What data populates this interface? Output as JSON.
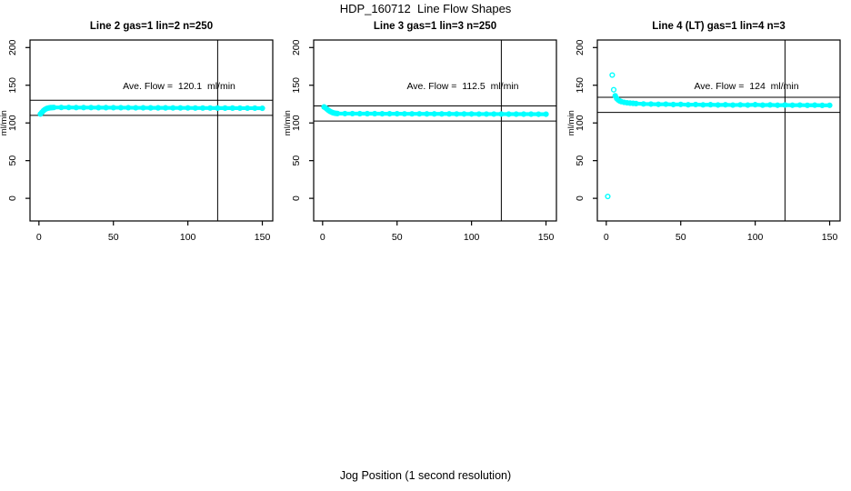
{
  "window": {
    "title": "HDP_160712  Line Flow Shapes",
    "xlabel": "Jog Position (1 second resolution)"
  },
  "colors": {
    "points": "#00FFFF",
    "axis": "#000000",
    "background": "#FFFFFF"
  },
  "chart_data": [
    {
      "type": "scatter",
      "title": "Line 2 gas=1 lin=2 n=250",
      "ylabel": "ml/min",
      "annotation": "Ave. Flow =  120.1  ml/min",
      "ave_flow": 120.1,
      "n": 250,
      "x_ticks": [
        0,
        50,
        100,
        150
      ],
      "y_ticks": [
        0,
        50,
        100,
        150,
        200
      ],
      "xlim": [
        -6,
        157
      ],
      "ylim": [
        -30,
        210
      ],
      "h_lines": [
        130.1,
        110.1
      ],
      "v_line": 120,
      "points": [
        [
          1,
          111.8
        ],
        [
          2,
          114.0
        ],
        [
          3,
          116.2
        ],
        [
          4,
          117.8
        ],
        [
          5,
          118.9
        ],
        [
          6,
          119.6
        ],
        [
          7,
          120.0
        ],
        [
          8,
          120.3
        ],
        [
          9,
          120.4
        ],
        [
          10,
          120.5
        ],
        [
          15,
          120.5
        ],
        [
          20,
          120.5
        ],
        [
          25,
          120.4
        ],
        [
          30,
          120.4
        ],
        [
          35,
          120.4
        ],
        [
          40,
          120.3
        ],
        [
          45,
          120.3
        ],
        [
          50,
          120.2
        ],
        [
          55,
          120.2
        ],
        [
          60,
          120.2
        ],
        [
          65,
          120.1
        ],
        [
          70,
          120.1
        ],
        [
          75,
          120.0
        ],
        [
          80,
          120.0
        ],
        [
          85,
          120.0
        ],
        [
          90,
          119.9
        ],
        [
          95,
          119.9
        ],
        [
          100,
          119.9
        ],
        [
          105,
          119.8
        ],
        [
          110,
          119.8
        ],
        [
          115,
          119.8
        ],
        [
          120,
          119.7
        ],
        [
          125,
          119.7
        ],
        [
          130,
          119.7
        ],
        [
          135,
          119.6
        ],
        [
          140,
          119.6
        ],
        [
          145,
          119.6
        ],
        [
          150,
          119.5
        ]
      ]
    },
    {
      "type": "scatter",
      "title": "Line 3 gas=1 lin=3 n=250",
      "ylabel": "ml/min",
      "annotation": "Ave. Flow =  112.5  ml/min",
      "ave_flow": 112.5,
      "n": 250,
      "x_ticks": [
        0,
        50,
        100,
        150
      ],
      "y_ticks": [
        0,
        50,
        100,
        150,
        200
      ],
      "xlim": [
        -6,
        157
      ],
      "ylim": [
        -30,
        210
      ],
      "h_lines": [
        122.5,
        102.5
      ],
      "v_line": 120,
      "points": [
        [
          1,
          121.2
        ],
        [
          2,
          119.9
        ],
        [
          3,
          118.2
        ],
        [
          4,
          116.6
        ],
        [
          5,
          115.3
        ],
        [
          6,
          114.3
        ],
        [
          7,
          113.5
        ],
        [
          8,
          113.0
        ],
        [
          9,
          112.7
        ],
        [
          10,
          112.5
        ],
        [
          15,
          112.4
        ],
        [
          20,
          112.4
        ],
        [
          25,
          112.3
        ],
        [
          30,
          112.3
        ],
        [
          35,
          112.3
        ],
        [
          40,
          112.2
        ],
        [
          45,
          112.2
        ],
        [
          50,
          112.2
        ],
        [
          55,
          112.1
        ],
        [
          60,
          112.1
        ],
        [
          65,
          112.1
        ],
        [
          70,
          112.0
        ],
        [
          75,
          112.0
        ],
        [
          80,
          112.0
        ],
        [
          85,
          112.0
        ],
        [
          90,
          111.9
        ],
        [
          95,
          111.9
        ],
        [
          100,
          111.9
        ],
        [
          105,
          111.8
        ],
        [
          110,
          111.8
        ],
        [
          115,
          111.8
        ],
        [
          120,
          111.8
        ],
        [
          125,
          111.7
        ],
        [
          130,
          111.7
        ],
        [
          135,
          111.7
        ],
        [
          140,
          111.7
        ],
        [
          145,
          111.6
        ],
        [
          150,
          111.6
        ]
      ]
    },
    {
      "type": "scatter",
      "title": "Line 4 (LT) gas=1 lin=4 n=3",
      "ylabel": "ml/min",
      "annotation": "Ave. Flow =  124  ml/min",
      "ave_flow": 124,
      "n": 3,
      "x_ticks": [
        0,
        50,
        100,
        150
      ],
      "y_ticks": [
        0,
        50,
        100,
        150,
        200
      ],
      "xlim": [
        -6,
        157
      ],
      "ylim": [
        -30,
        210
      ],
      "h_lines": [
        134,
        114
      ],
      "v_line": 120,
      "points": [
        [
          1,
          2.5
        ],
        [
          4,
          163.5
        ],
        [
          5,
          144.0
        ],
        [
          6,
          136.0
        ],
        [
          7,
          132.5
        ],
        [
          8,
          130.5
        ],
        [
          9,
          129.2
        ],
        [
          10,
          128.3
        ],
        [
          12,
          127.3
        ],
        [
          14,
          126.7
        ],
        [
          16,
          126.3
        ],
        [
          18,
          126.0
        ],
        [
          20,
          125.7
        ],
        [
          25,
          125.2
        ],
        [
          30,
          125.0
        ],
        [
          35,
          124.7
        ],
        [
          40,
          124.9
        ],
        [
          45,
          124.4
        ],
        [
          50,
          124.6
        ],
        [
          55,
          124.1
        ],
        [
          60,
          124.4
        ],
        [
          65,
          124.0
        ],
        [
          70,
          124.2
        ],
        [
          75,
          123.8
        ],
        [
          80,
          124.1
        ],
        [
          85,
          123.7
        ],
        [
          90,
          124.0
        ],
        [
          95,
          123.7
        ],
        [
          100,
          124.2
        ],
        [
          105,
          123.6
        ],
        [
          110,
          123.9
        ],
        [
          115,
          123.5
        ],
        [
          120,
          123.8
        ],
        [
          125,
          123.5
        ],
        [
          130,
          123.7
        ],
        [
          135,
          123.4
        ],
        [
          140,
          123.6
        ],
        [
          145,
          123.3
        ],
        [
          150,
          123.4
        ]
      ]
    }
  ]
}
